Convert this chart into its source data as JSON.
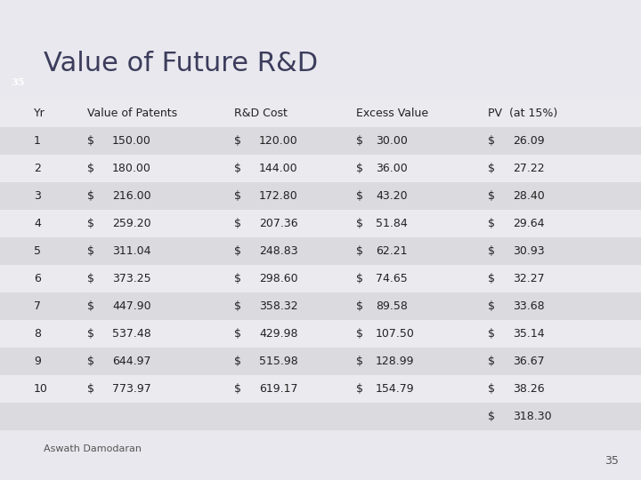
{
  "title": "Value of Future R&D",
  "slide_number": "35",
  "header_bg_color": "#4B5082",
  "bg_color": "#E8E8EE",
  "stripe_color": "#DCDCE4",
  "white_row_color": "#EEEEF2",
  "col_headers": [
    "Yr",
    "Value of Patents",
    "R&D Cost",
    "Excess Value",
    "PV  (at 15%)"
  ],
  "rows": [
    [
      1,
      150.0,
      120.0,
      30.0,
      26.09
    ],
    [
      2,
      180.0,
      144.0,
      36.0,
      27.22
    ],
    [
      3,
      216.0,
      172.8,
      43.2,
      28.4
    ],
    [
      4,
      259.2,
      207.36,
      51.84,
      29.64
    ],
    [
      5,
      311.04,
      248.83,
      62.21,
      30.93
    ],
    [
      6,
      373.25,
      298.6,
      74.65,
      32.27
    ],
    [
      7,
      447.9,
      358.32,
      89.58,
      33.68
    ],
    [
      8,
      537.48,
      429.98,
      107.5,
      35.14
    ],
    [
      9,
      644.97,
      515.98,
      128.99,
      36.67
    ],
    [
      10,
      773.97,
      619.17,
      154.79,
      38.26
    ]
  ],
  "total_pv": 318.3,
  "footer_text": "Aswath Damodaran",
  "footer_page": "35",
  "title_fontsize": 22,
  "header_fontsize": 9,
  "cell_fontsize": 9,
  "footer_fontsize": 8
}
